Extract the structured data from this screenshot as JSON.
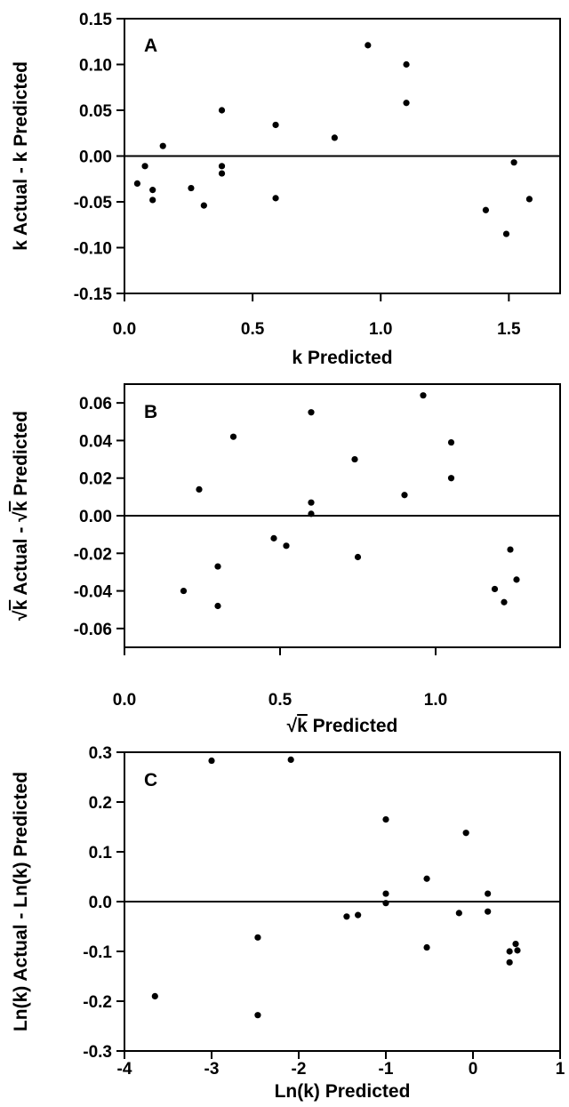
{
  "chart_data": [
    {
      "type": "scatter",
      "panel_label": "A",
      "xlabel": "k Predicted",
      "ylabel": "k Actual -  k Predicted",
      "xlim": [
        0,
        1.7
      ],
      "ylim": [
        -0.15,
        0.15
      ],
      "x_ticks": [
        0,
        0.5,
        1,
        1.5
      ],
      "x_tick_labels": [
        "0.0",
        "0.5",
        "1.0",
        "1.5"
      ],
      "y_ticks": [
        -0.15,
        -0.1,
        -0.05,
        0,
        0.05,
        0.1,
        0.15
      ],
      "y_tick_labels": [
        "-0.15",
        "-0.10",
        "-0.05",
        "0.00",
        "0.05",
        "0.10",
        "0.15"
      ],
      "reference_line_y": 0,
      "grid": false,
      "points": [
        [
          0.05,
          -0.03
        ],
        [
          0.08,
          -0.011
        ],
        [
          0.11,
          -0.037
        ],
        [
          0.11,
          -0.048
        ],
        [
          0.15,
          0.011
        ],
        [
          0.26,
          -0.035
        ],
        [
          0.31,
          -0.054
        ],
        [
          0.38,
          0.05
        ],
        [
          0.38,
          -0.011
        ],
        [
          0.38,
          -0.019
        ],
        [
          0.59,
          0.034
        ],
        [
          0.59,
          -0.046
        ],
        [
          0.82,
          0.02
        ],
        [
          0.95,
          0.121
        ],
        [
          1.1,
          0.1
        ],
        [
          1.1,
          0.058
        ],
        [
          1.41,
          -0.059
        ],
        [
          1.49,
          -0.085
        ],
        [
          1.52,
          -0.007
        ],
        [
          1.58,
          -0.047
        ]
      ]
    },
    {
      "type": "scatter",
      "panel_label": "B",
      "xlabel": "k Predicted",
      "ylabel": "k Actual -  k Predicted",
      "sqrt_symbol": "√",
      "xlim": [
        0,
        1.4
      ],
      "ylim": [
        -0.07,
        0.07
      ],
      "x_ticks": [
        0,
        0.5,
        1
      ],
      "x_tick_labels": [
        "0.0",
        "0.5",
        "1.0"
      ],
      "y_ticks": [
        -0.06,
        -0.04,
        -0.02,
        0,
        0.02,
        0.04,
        0.06
      ],
      "y_tick_labels": [
        "-0.06",
        "-0.04",
        "-0.02",
        "0.00",
        "0.02",
        "0.04",
        "0.06"
      ],
      "reference_line_y": 0,
      "grid": false,
      "points": [
        [
          0.19,
          -0.04
        ],
        [
          0.24,
          0.014
        ],
        [
          0.3,
          -0.027
        ],
        [
          0.3,
          -0.048
        ],
        [
          0.35,
          0.042
        ],
        [
          0.48,
          -0.012
        ],
        [
          0.52,
          -0.016
        ],
        [
          0.6,
          0.055
        ],
        [
          0.6,
          0.007
        ],
        [
          0.6,
          0.001
        ],
        [
          0.74,
          0.03
        ],
        [
          0.75,
          -0.022
        ],
        [
          0.9,
          0.011
        ],
        [
          0.96,
          0.064
        ],
        [
          1.05,
          0.039
        ],
        [
          1.05,
          0.02
        ],
        [
          1.19,
          -0.039
        ],
        [
          1.22,
          -0.046
        ],
        [
          1.24,
          -0.018
        ],
        [
          1.26,
          -0.034
        ]
      ]
    },
    {
      "type": "scatter",
      "panel_label": "C",
      "xlabel": "Ln(k) Predicted",
      "ylabel": "Ln(k) Actual -  Ln(k) Predicted",
      "xlim": [
        -4,
        1
      ],
      "ylim": [
        -0.3,
        0.3
      ],
      "x_ticks": [
        -4,
        -3,
        -2,
        -1,
        0,
        1
      ],
      "x_tick_labels": [
        "-4",
        "-3",
        "-2",
        "-1",
        "0",
        "1"
      ],
      "y_ticks": [
        -0.3,
        -0.2,
        -0.1,
        0,
        0.1,
        0.2,
        0.3
      ],
      "y_tick_labels": [
        "-0.3",
        "-0.2",
        "-0.1",
        "0.0",
        "0.1",
        "0.2",
        "0.3"
      ],
      "reference_line_y": 0,
      "grid": false,
      "points": [
        [
          -3.65,
          -0.19
        ],
        [
          -3.0,
          0.283
        ],
        [
          -2.47,
          -0.072
        ],
        [
          -2.47,
          -0.228
        ],
        [
          -2.09,
          0.285
        ],
        [
          -1.45,
          -0.03
        ],
        [
          -1.32,
          -0.027
        ],
        [
          -1.0,
          0.165
        ],
        [
          -1.0,
          0.016
        ],
        [
          -1.0,
          -0.003
        ],
        [
          -0.53,
          0.046
        ],
        [
          -0.53,
          -0.092
        ],
        [
          -0.16,
          -0.023
        ],
        [
          -0.08,
          0.138
        ],
        [
          0.17,
          0.016
        ],
        [
          0.17,
          -0.02
        ],
        [
          0.42,
          -0.1
        ],
        [
          0.42,
          -0.122
        ],
        [
          0.49,
          -0.085
        ],
        [
          0.51,
          -0.098
        ]
      ]
    }
  ]
}
